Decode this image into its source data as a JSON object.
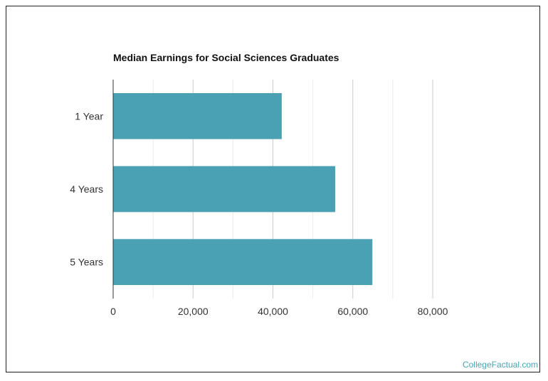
{
  "chart_data": {
    "type": "bar",
    "orientation": "horizontal",
    "title": "Median Earnings for Social Sciences Graduates",
    "categories": [
      "1 Year",
      "4 Years",
      "5 Years"
    ],
    "values": [
      42200,
      55600,
      64900
    ],
    "xlim": [
      0,
      80000
    ],
    "xticks": [
      0,
      20000,
      40000,
      60000,
      80000
    ],
    "xtick_labels": [
      "0",
      "20,000",
      "40,000",
      "60,000",
      "80,000"
    ],
    "grid": true,
    "legend": "none",
    "bar_color": "#4aa1b3",
    "xlabel": "",
    "ylabel": ""
  },
  "watermark": "CollegeFactual.com"
}
